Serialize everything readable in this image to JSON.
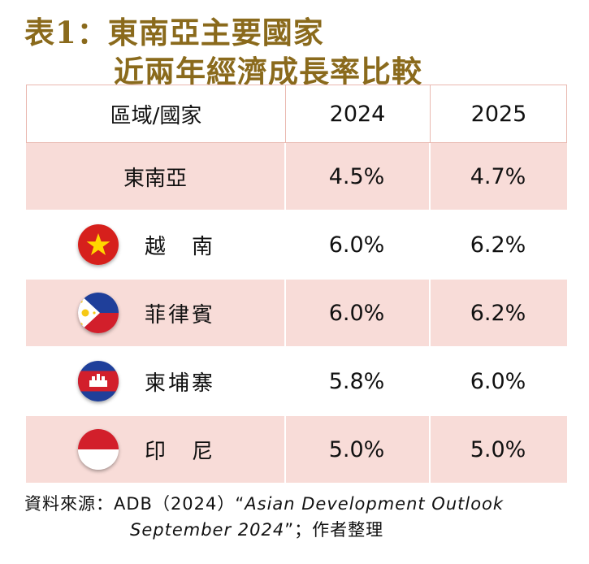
{
  "title": {
    "line1": "表1：東南亞主要國家",
    "line2": "近兩年經濟成長率比較"
  },
  "table": {
    "headers": [
      "區域/國家",
      "2024",
      "2025"
    ],
    "rows": [
      {
        "name": "東南亞",
        "y2024": "4.5%",
        "y2025": "4.7%",
        "flag": ""
      },
      {
        "name": "越　南",
        "y2024": "6.0%",
        "y2025": "6.2%",
        "flag": "vietnam-flag-icon"
      },
      {
        "name": "菲律賓",
        "y2024": "6.0%",
        "y2025": "6.2%",
        "flag": "philippines-flag-icon"
      },
      {
        "name": "柬埔寨",
        "y2024": "5.8%",
        "y2025": "6.0%",
        "flag": "cambodia-flag-icon"
      },
      {
        "name": "印　尼",
        "y2024": "5.0%",
        "y2025": "5.0%",
        "flag": "indonesia-flag-icon"
      }
    ]
  },
  "source": {
    "prefix": "資料來源：ADB（2024）“",
    "italic1": "Asian Development Outlook",
    "italic2": "September 2024",
    "suffix": "”；作者整理"
  },
  "colors": {
    "title": "#8a6a1c",
    "shade": "#f8dcd8",
    "border": "#e9b8b0"
  }
}
